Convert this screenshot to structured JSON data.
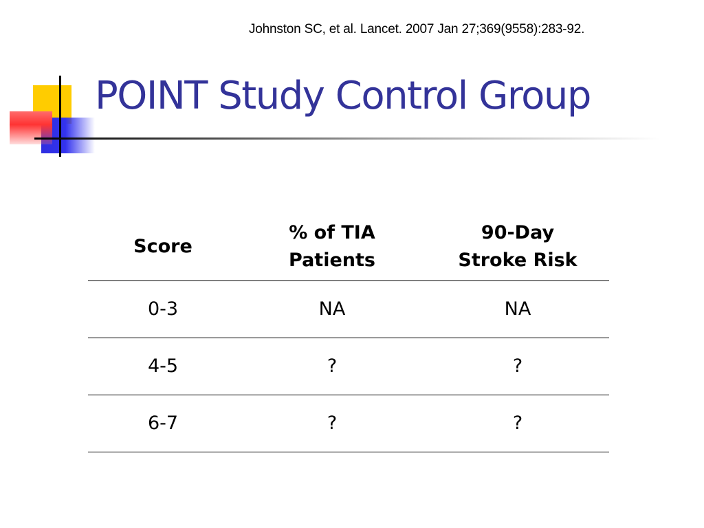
{
  "slide": {
    "citation": "Johnston SC, et al. Lancet. 2007 Jan 27;369(9558):283-92.",
    "title": "POINT Study Control Group"
  },
  "table": {
    "headers": [
      [
        "Score"
      ],
      [
        "% of TIA",
        "Patients"
      ],
      [
        "90-Day",
        "Stroke Risk"
      ]
    ],
    "rows": [
      [
        "0-3",
        "NA",
        "NA"
      ],
      [
        "4-5",
        "?",
        "?"
      ],
      [
        "6-7",
        "?",
        "?"
      ]
    ]
  },
  "colors": {
    "title": "#333399",
    "logo_yellow": "#ffcc00",
    "logo_blue": "#3333ee",
    "logo_red": "#ff3333"
  }
}
